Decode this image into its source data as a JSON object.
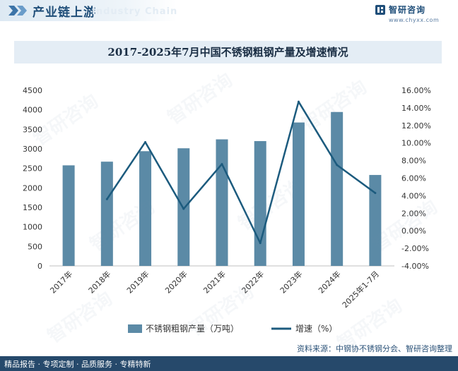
{
  "header": {
    "title": "产业链上游",
    "ghost_text": "Industry Chain",
    "brand_name": "智研咨询",
    "brand_url": "www.chyxx.com"
  },
  "watermark": {
    "text": "智研咨询"
  },
  "chart_data": {
    "type": "bar+line",
    "title": "2017-2025年7月中国不锈钢粗钢产量及增速情况",
    "categories": [
      "2017年",
      "2018年",
      "2019年",
      "2020年",
      "2021年",
      "2022年",
      "2023年",
      "2024年",
      "2025年1-7月"
    ],
    "series": [
      {
        "name": "不锈钢粗钢产量（万吨）",
        "type": "bar",
        "axis": "left",
        "color": "#5b8aa6",
        "values": [
          2577,
          2671,
          2940,
          3014,
          3243,
          3198,
          3675,
          3944,
          2330
        ]
      },
      {
        "name": "增速（%）",
        "type": "line",
        "axis": "right",
        "color": "#1c5b7e",
        "values": [
          null,
          3.6,
          10.1,
          2.5,
          7.6,
          -1.4,
          14.7,
          7.5,
          4.3
        ]
      }
    ],
    "left_axis": {
      "min": 0,
      "max": 4500,
      "step": 500
    },
    "right_axis": {
      "min": -4,
      "max": 16,
      "step": 2,
      "format": "percent_2dp"
    }
  },
  "footer": {
    "tagline": "精品报告 · 专项定制 · 品质服务 · 专精特新",
    "source": "资料来源：中钢协不锈钢分会、智研咨询整理"
  }
}
